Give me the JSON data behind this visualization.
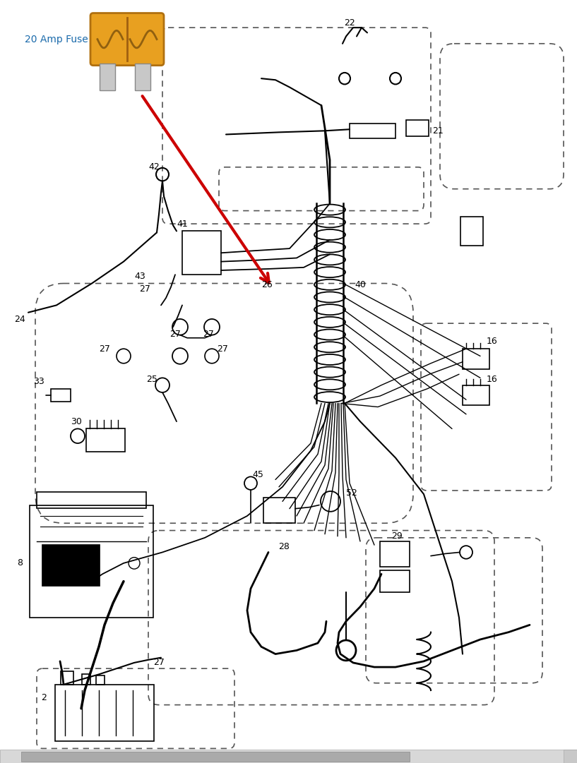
{
  "bg_color": "#ffffff",
  "fuse_color": "#E8A020",
  "fuse_prong_color": "#C8C8C8",
  "fuse_label": "20 Amp Fuse",
  "fuse_label_color": "#1a6aab",
  "arrow_color": "#cc0000",
  "line_color": "#000000",
  "dash_color": "#555555",
  "text_color": "#000000",
  "fig_width": 8.17,
  "fig_height": 10.81,
  "dpi": 100
}
